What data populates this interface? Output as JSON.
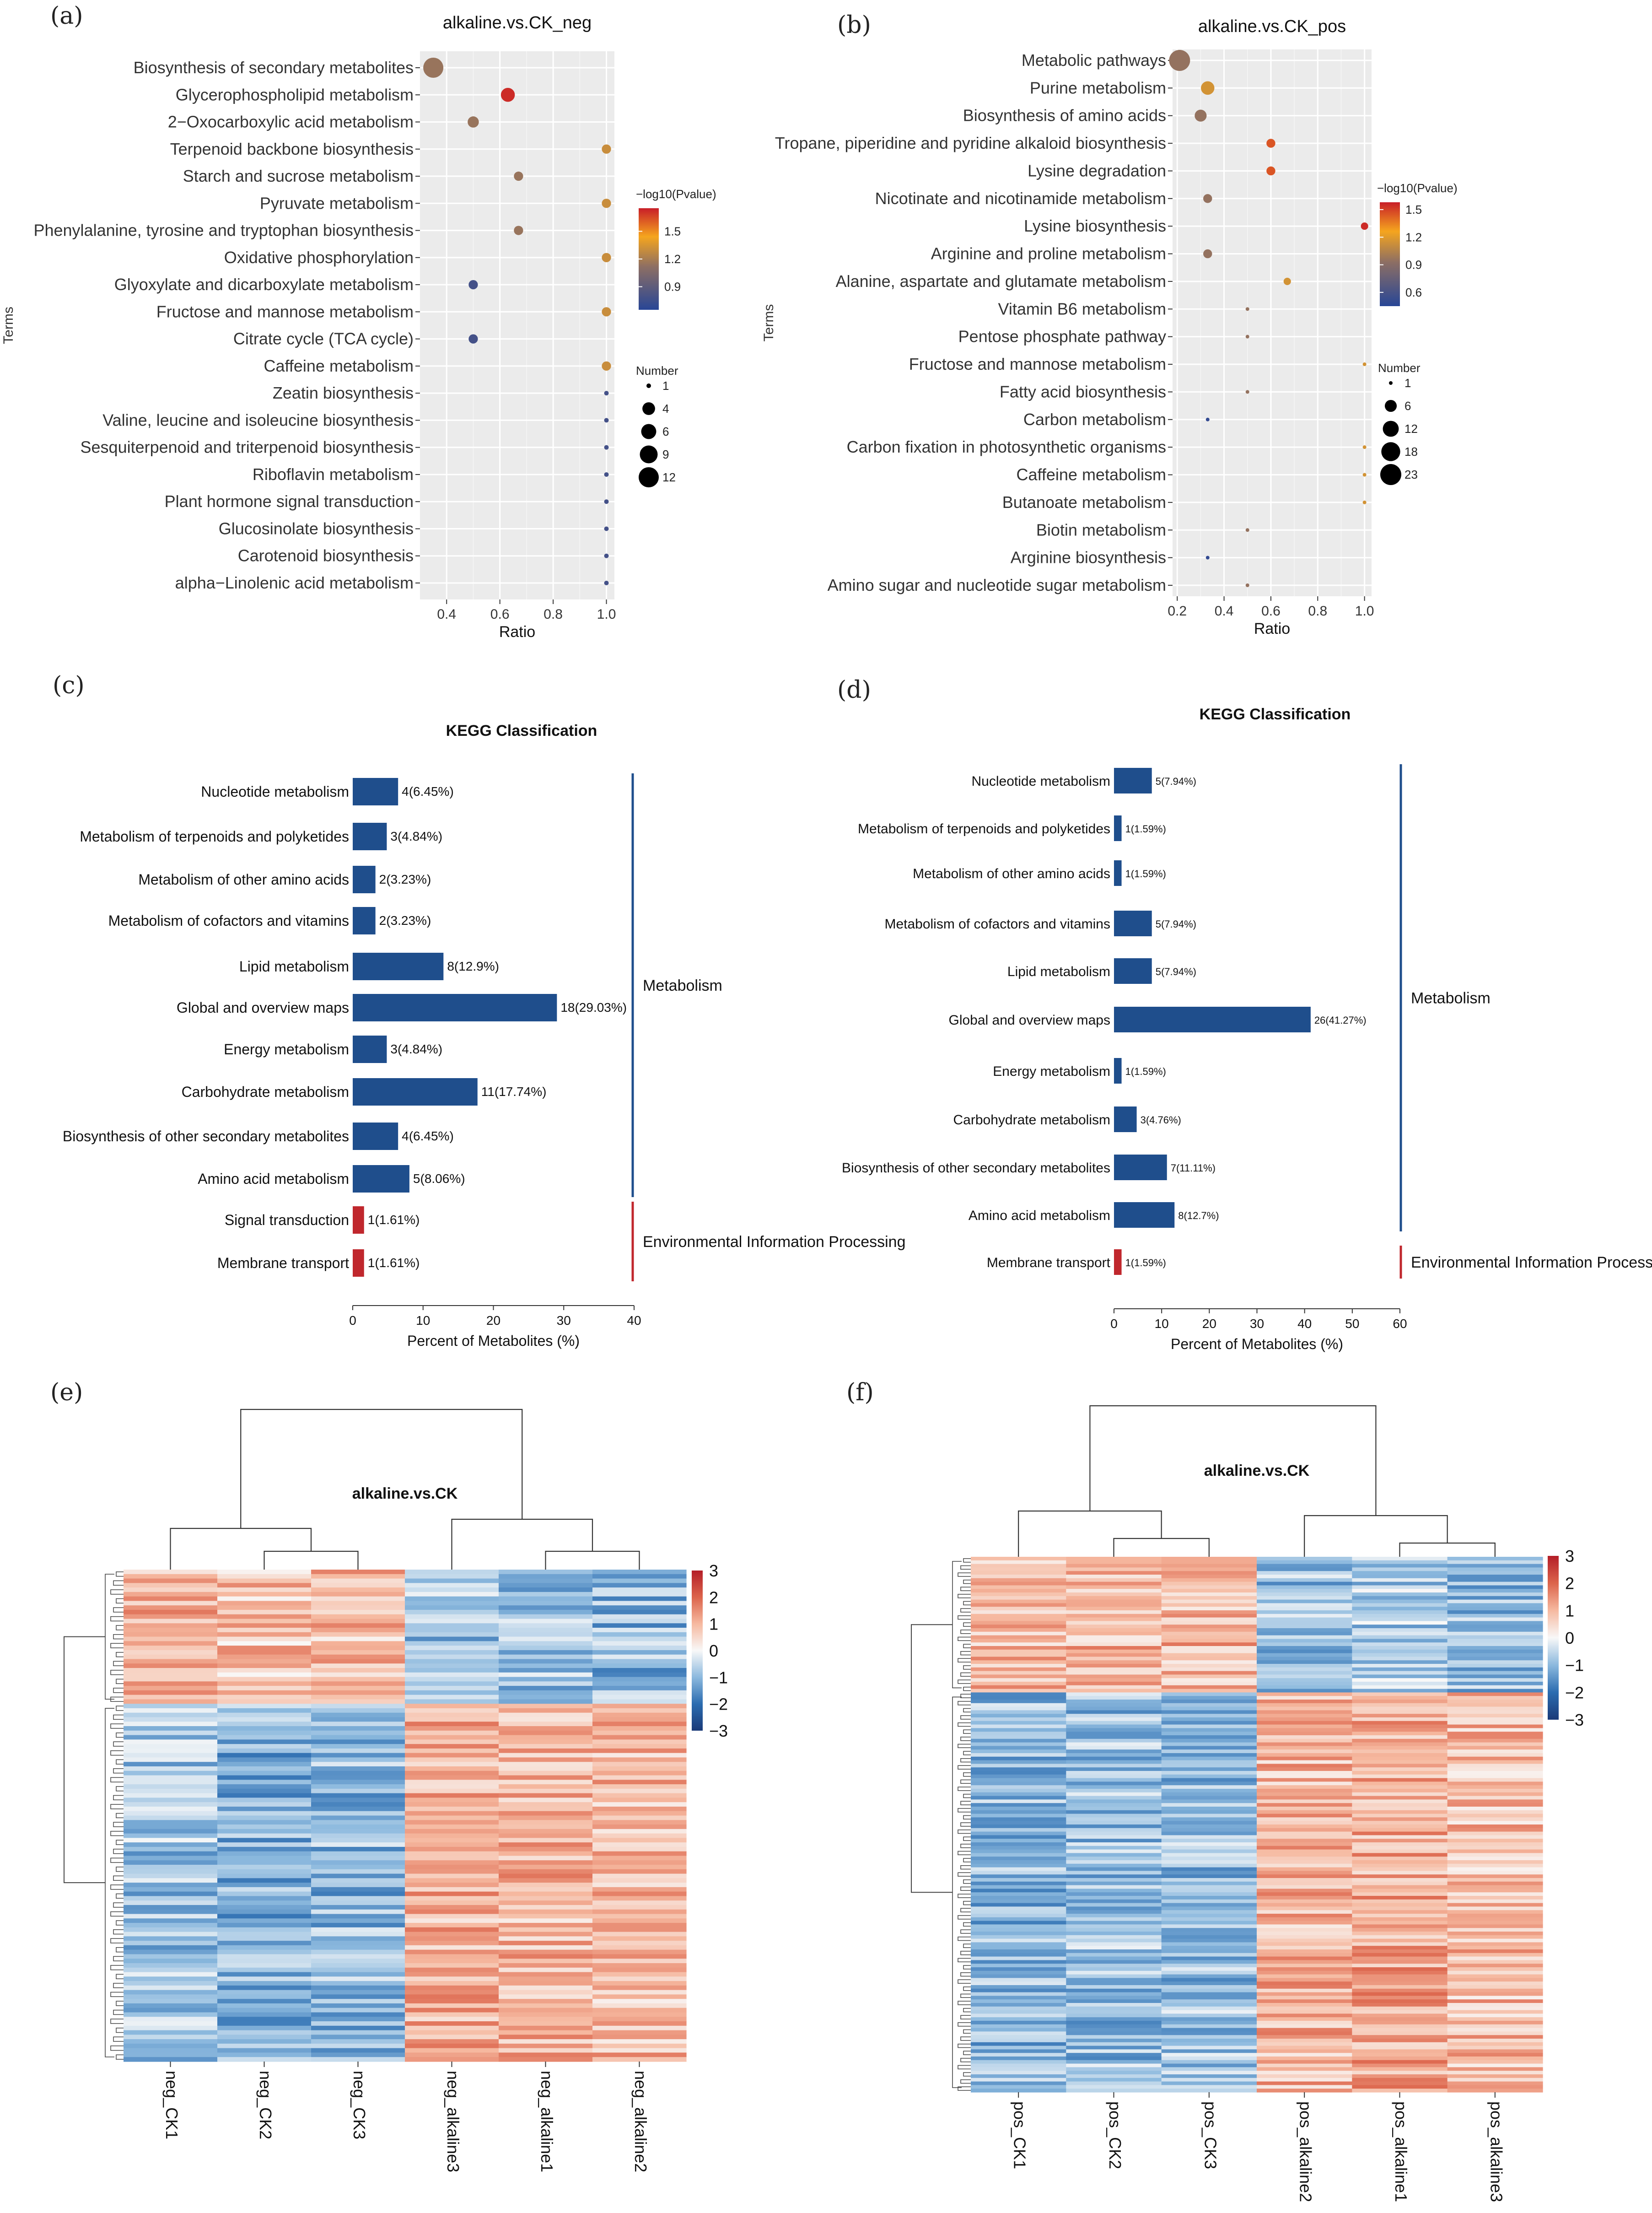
{
  "panel_labels": [
    "(a)",
    "(b)",
    "(c)",
    "(d)",
    "(e)",
    "(f)"
  ],
  "chart_data": [
    {
      "id": "a",
      "type": "scatter",
      "title": "alkaline.vs.CK_neg",
      "xlabel": "Ratio",
      "ylabel": "Terms",
      "xlim": [
        0.3,
        1.03
      ],
      "xticks": [
        0.4,
        0.6,
        0.8,
        1.0
      ],
      "xtick_labels": [
        "0.4",
        "0.6",
        "0.8",
        "1.0"
      ],
      "terms": [
        "Biosynthesis of secondary metabolites",
        "Glycerophospholipid metabolism",
        "2−Oxocarboxylic acid metabolism",
        "Terpenoid backbone biosynthesis",
        "Starch and sucrose metabolism",
        "Pyruvate metabolism",
        "Phenylalanine, tyrosine and tryptophan biosynthesis",
        "Oxidative phosphorylation",
        "Glyoxylate and dicarboxylate metabolism",
        "Fructose and mannose metabolism",
        "Citrate cycle (TCA cycle)",
        "Caffeine metabolism",
        "Zeatin biosynthesis",
        "Valine, leucine and isoleucine biosynthesis",
        "Sesquiterpenoid and triterpenoid biosynthesis",
        "Riboflavin metabolism",
        "Plant hormone signal transduction",
        "Glucosinolate biosynthesis",
        "Carotenoid biosynthesis",
        "alpha−Linolenic acid metabolism"
      ],
      "ratio": [
        0.35,
        0.63,
        0.5,
        1.0,
        0.67,
        1.0,
        0.67,
        1.0,
        0.5,
        1.0,
        0.5,
        1.0,
        1.0,
        1.0,
        1.0,
        1.0,
        1.0,
        1.0,
        1.0,
        1.0
      ],
      "pvalue": [
        1.15,
        1.72,
        1.15,
        1.3,
        1.15,
        1.3,
        1.15,
        1.3,
        0.78,
        1.3,
        0.78,
        1.3,
        0.78,
        0.78,
        0.78,
        0.78,
        0.78,
        0.78,
        0.78,
        0.78
      ],
      "number": [
        12,
        5,
        3,
        2,
        2,
        2,
        2,
        2,
        2,
        2,
        2,
        2,
        1,
        1,
        1,
        1,
        1,
        1,
        1,
        1
      ],
      "color_legend": {
        "title": "−log10(Pvalue)",
        "ticks": [
          1.5,
          1.2,
          0.9
        ],
        "labels": [
          "1.5",
          "1.2",
          "0.9"
        ],
        "range": [
          0.65,
          1.75
        ]
      },
      "size_legend": {
        "title": "Number",
        "values": [
          1,
          4,
          6,
          9,
          12
        ],
        "labels": [
          "1",
          "4",
          "6",
          "9",
          "12"
        ]
      }
    },
    {
      "id": "b",
      "type": "scatter",
      "title": "alkaline.vs.CK_pos",
      "xlabel": "Ratio",
      "ylabel": "Terms",
      "xlim": [
        0.18,
        1.03
      ],
      "xticks": [
        0.2,
        0.4,
        0.6,
        0.8,
        1.0
      ],
      "xtick_labels": [
        "0.2",
        "0.4",
        "0.6",
        "0.8",
        "1.0"
      ],
      "terms": [
        "Metabolic pathways",
        "Purine metabolism",
        "Biosynthesis of amino acids",
        "Tropane, piperidine and pyridine alkaloid biosynthesis",
        "Lysine degradation",
        "Nicotinate and nicotinamide metabolism",
        "Lysine biosynthesis",
        "Arginine and proline metabolism",
        "Alanine, aspartate and glutamate metabolism",
        "Vitamin B6 metabolism",
        "Pentose phosphate pathway",
        "Fructose and mannose metabolism",
        "Fatty acid biosynthesis",
        "Carbon metabolism",
        "Carbon fixation in photosynthetic organisms",
        "Caffeine metabolism",
        "Butanoate metabolism",
        "Biotin metabolism",
        "Arginine biosynthesis",
        "Amino sugar and nucleotide sugar metabolism"
      ],
      "ratio": [
        0.21,
        0.33,
        0.3,
        0.6,
        0.6,
        0.33,
        1.0,
        0.33,
        0.67,
        0.5,
        0.5,
        1.0,
        0.5,
        0.33,
        1.0,
        1.0,
        1.0,
        0.5,
        0.33,
        0.5
      ],
      "pvalue": [
        0.95,
        1.15,
        0.95,
        1.45,
        1.45,
        0.95,
        1.55,
        0.95,
        1.15,
        0.95,
        0.95,
        1.15,
        0.95,
        0.5,
        1.15,
        1.15,
        1.15,
        0.95,
        0.5,
        0.95
      ],
      "number": [
        23,
        8,
        6,
        3,
        3,
        3,
        2,
        3,
        2,
        1,
        1,
        1,
        1,
        1,
        1,
        1,
        1,
        1,
        1,
        1
      ],
      "color_legend": {
        "title": "−log10(Pvalue)",
        "ticks": [
          1.5,
          1.2,
          0.9,
          0.6
        ],
        "labels": [
          "1.5",
          "1.2",
          "0.9",
          "0.6"
        ],
        "range": [
          0.45,
          1.58
        ]
      },
      "size_legend": {
        "title": "Number",
        "values": [
          1,
          6,
          12,
          18,
          23
        ],
        "labels": [
          "1",
          "6",
          "12",
          "18",
          "23"
        ]
      }
    },
    {
      "id": "c",
      "type": "bar",
      "title": "KEGG Classification",
      "xlabel": "Percent of Metabolites (%)",
      "xlim": [
        0,
        40
      ],
      "xticks": [
        0,
        10,
        20,
        30,
        40
      ],
      "xtick_labels": [
        "0",
        "10",
        "20",
        "30",
        "40"
      ],
      "categories": [
        "Nucleotide metabolism",
        "Metabolism of terpenoids and polyketides",
        "Metabolism of other amino acids",
        "Metabolism of cofactors and vitamins",
        "Lipid metabolism",
        "Global and overview maps",
        "Energy metabolism",
        "Carbohydrate metabolism",
        "Biosynthesis of other secondary metabolites",
        "Amino acid metabolism",
        "Signal transduction",
        "Membrane transport"
      ],
      "values": [
        6.45,
        4.84,
        3.23,
        3.23,
        12.9,
        29.03,
        4.84,
        17.74,
        6.45,
        8.06,
        1.61,
        1.61
      ],
      "value_labels": [
        "4(6.45%)",
        "3(4.84%)",
        "2(3.23%)",
        "2(3.23%)",
        "8(12.9%)",
        "18(29.03%)",
        "3(4.84%)",
        "11(17.74%)",
        "4(6.45%)",
        "5(8.06%)",
        "1(1.61%)",
        "1(1.61%)"
      ],
      "group": [
        "m",
        "m",
        "m",
        "m",
        "m",
        "m",
        "m",
        "m",
        "m",
        "m",
        "e",
        "e"
      ],
      "groups": [
        {
          "key": "m",
          "label": "Metabolism",
          "color": "#1f4e8c"
        },
        {
          "key": "e",
          "label": "Environmental Information Processing",
          "color": "#c0272d"
        }
      ]
    },
    {
      "id": "d",
      "type": "bar",
      "title": "KEGG Classification",
      "xlabel": "Percent of Metabolites (%)",
      "xlim": [
        0,
        60
      ],
      "xticks": [
        0,
        10,
        20,
        30,
        40,
        50,
        60
      ],
      "xtick_labels": [
        "0",
        "10",
        "20",
        "30",
        "40",
        "50",
        "60"
      ],
      "categories": [
        "Nucleotide metabolism",
        "Metabolism of terpenoids and polyketides",
        "Metabolism of other amino acids",
        "Metabolism of cofactors and vitamins",
        "Lipid metabolism",
        "Global and overview maps",
        "Energy metabolism",
        "Carbohydrate metabolism",
        "Biosynthesis of other secondary metabolites",
        "Amino acid metabolism",
        "Membrane transport"
      ],
      "values": [
        7.94,
        1.59,
        1.59,
        7.94,
        7.94,
        41.27,
        1.59,
        4.76,
        11.11,
        12.7,
        1.59
      ],
      "value_labels": [
        "5(7.94%)",
        "1(1.59%)",
        "1(1.59%)",
        "5(7.94%)",
        "5(7.94%)",
        "26(41.27%)",
        "1(1.59%)",
        "3(4.76%)",
        "7(11.11%)",
        "8(12.7%)",
        "1(1.59%)"
      ],
      "group": [
        "m",
        "m",
        "m",
        "m",
        "m",
        "m",
        "m",
        "m",
        "m",
        "m",
        "e"
      ],
      "groups": [
        {
          "key": "m",
          "label": "Metabolism",
          "color": "#1f4e8c"
        },
        {
          "key": "e",
          "label": "Environmental Information Processing",
          "color": "#c0272d"
        }
      ]
    },
    {
      "id": "e",
      "type": "heatmap",
      "title": "alkaline.vs.CK",
      "columns": [
        "neg_CK1",
        "neg_CK2",
        "neg_CK3",
        "neg_alkaline3",
        "neg_alkaline1",
        "neg_alkaline2"
      ],
      "color_range": [
        -3,
        3
      ],
      "colorbar_ticks": [
        3,
        2,
        1,
        0,
        -1,
        -2,
        -3
      ],
      "colorbar_labels": [
        "3",
        "2",
        "1",
        "0",
        "−1",
        "−2",
        "−3"
      ],
      "row_count": 110,
      "up_in_ck_rows": 30
    },
    {
      "id": "f",
      "type": "heatmap",
      "title": "alkaline.vs.CK",
      "columns": [
        "pos_CK1",
        "pos_CK2",
        "pos_CK3",
        "pos_alkaline2",
        "pos_alkaline1",
        "pos_alkaline3"
      ],
      "color_range": [
        -3,
        3
      ],
      "colorbar_ticks": [
        3,
        2,
        1,
        0,
        -1,
        -2,
        -3
      ],
      "colorbar_labels": [
        "3",
        "2",
        "1",
        "0",
        "−1",
        "−2",
        "−3"
      ],
      "row_count": 150,
      "up_in_ck_rows": 38
    }
  ]
}
